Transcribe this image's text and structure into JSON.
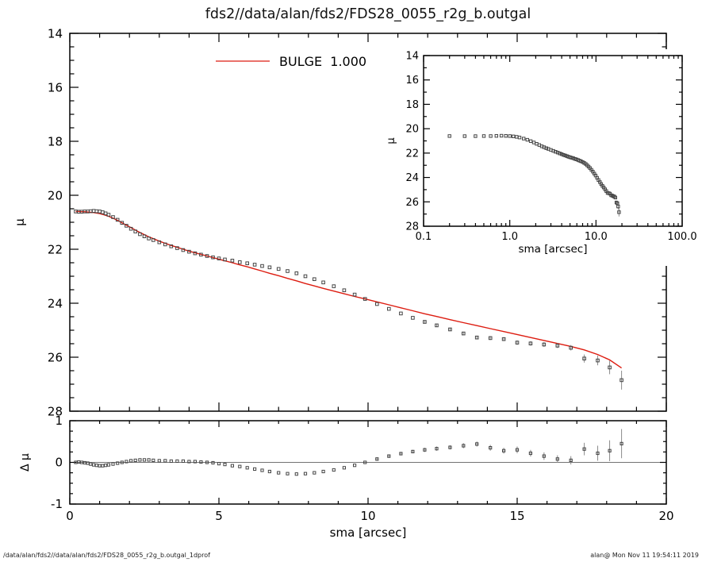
{
  "title": "fds2//data/alan/fds2/FDS28_0055_r2g_b.outgal",
  "footer": {
    "left": "/data/alan/fds2//data/alan/fds2/FDS28_0055_r2g_b.outgal_1dprof",
    "right": "alan@  Mon Nov 11 19:54:11 2019"
  },
  "colors": {
    "model_line": "#dd1c10",
    "data_marker": "#454545",
    "error_bar": "#8a8a8a",
    "axis": "#000000",
    "background": "#ffffff"
  },
  "chart_data": {
    "shared_series": {
      "sma_arcsec": [
        0.2,
        0.3,
        0.4,
        0.5,
        0.6,
        0.7,
        0.8,
        0.9,
        1.0,
        1.1,
        1.2,
        1.3,
        1.45,
        1.6,
        1.75,
        1.9,
        2.05,
        2.2,
        2.35,
        2.5,
        2.65,
        2.8,
        3.0,
        3.2,
        3.4,
        3.6,
        3.8,
        4.0,
        4.2,
        4.4,
        4.6,
        4.8,
        5.0,
        5.2,
        5.45,
        5.7,
        5.95,
        6.2,
        6.45,
        6.7,
        7.0,
        7.3,
        7.6,
        7.9,
        8.2,
        8.5,
        8.85,
        9.2,
        9.55,
        9.9,
        10.3,
        10.7,
        11.1,
        11.5,
        11.9,
        12.3,
        12.75,
        13.2,
        13.65,
        14.1,
        14.55,
        15.0,
        15.45,
        15.9,
        16.35,
        16.8,
        17.25,
        17.7,
        18.1,
        18.5
      ],
      "mu_data": [
        20.6,
        20.61,
        20.61,
        20.6,
        20.6,
        20.59,
        20.58,
        20.59,
        20.6,
        20.63,
        20.67,
        20.72,
        20.81,
        20.91,
        21.02,
        21.13,
        21.24,
        21.34,
        21.44,
        21.52,
        21.6,
        21.66,
        21.74,
        21.82,
        21.89,
        21.96,
        22.03,
        22.09,
        22.15,
        22.2,
        22.25,
        22.3,
        22.34,
        22.38,
        22.42,
        22.48,
        22.52,
        22.57,
        22.62,
        22.67,
        22.73,
        22.81,
        22.89,
        23.0,
        23.11,
        23.23,
        23.37,
        23.52,
        23.68,
        23.84,
        24.03,
        24.21,
        24.38,
        24.54,
        24.69,
        24.82,
        24.97,
        25.12,
        25.27,
        25.29,
        25.33,
        25.46,
        25.49,
        25.53,
        25.57,
        25.65,
        26.05,
        26.12,
        26.38,
        26.85
      ],
      "mu_model_bulge": [
        20.6,
        20.6,
        20.61,
        20.61,
        20.62,
        20.63,
        20.64,
        20.66,
        20.68,
        20.71,
        20.74,
        20.78,
        20.85,
        20.93,
        21.02,
        21.11,
        21.2,
        21.29,
        21.38,
        21.46,
        21.54,
        21.61,
        21.7,
        21.78,
        21.86,
        21.93,
        22.0,
        22.07,
        22.13,
        22.19,
        22.25,
        22.31,
        22.37,
        22.43,
        22.5,
        22.58,
        22.65,
        22.73,
        22.81,
        22.89,
        22.98,
        23.08,
        23.17,
        23.27,
        23.36,
        23.45,
        23.55,
        23.65,
        23.75,
        23.84,
        23.95,
        24.06,
        24.17,
        24.28,
        24.39,
        24.49,
        24.61,
        24.72,
        24.83,
        24.94,
        25.05,
        25.16,
        25.27,
        25.38,
        25.49,
        25.6,
        25.73,
        25.9,
        26.1,
        26.4
      ],
      "delta_mu": [
        0.0,
        0.01,
        0.0,
        -0.01,
        -0.02,
        -0.04,
        -0.06,
        -0.07,
        -0.08,
        -0.08,
        -0.07,
        -0.06,
        -0.04,
        -0.02,
        0.0,
        0.02,
        0.04,
        0.05,
        0.06,
        0.06,
        0.06,
        0.05,
        0.04,
        0.04,
        0.03,
        0.03,
        0.03,
        0.02,
        0.02,
        0.01,
        0.0,
        -0.01,
        -0.03,
        -0.05,
        -0.08,
        -0.1,
        -0.13,
        -0.16,
        -0.19,
        -0.22,
        -0.25,
        -0.27,
        -0.28,
        -0.27,
        -0.25,
        -0.22,
        -0.18,
        -0.13,
        -0.07,
        0.0,
        0.08,
        0.15,
        0.21,
        0.26,
        0.3,
        0.33,
        0.36,
        0.4,
        0.44,
        0.35,
        0.28,
        0.3,
        0.22,
        0.15,
        0.08,
        0.05,
        0.32,
        0.22,
        0.28,
        0.45
      ],
      "mu_err": [
        0.01,
        0.01,
        0.01,
        0.01,
        0.01,
        0.01,
        0.01,
        0.01,
        0.01,
        0.01,
        0.01,
        0.01,
        0.01,
        0.01,
        0.01,
        0.01,
        0.01,
        0.01,
        0.01,
        0.01,
        0.01,
        0.01,
        0.01,
        0.01,
        0.01,
        0.01,
        0.01,
        0.01,
        0.01,
        0.01,
        0.01,
        0.01,
        0.02,
        0.02,
        0.02,
        0.02,
        0.02,
        0.02,
        0.02,
        0.02,
        0.02,
        0.02,
        0.02,
        0.02,
        0.02,
        0.02,
        0.03,
        0.03,
        0.03,
        0.03,
        0.04,
        0.04,
        0.04,
        0.04,
        0.05,
        0.05,
        0.05,
        0.06,
        0.06,
        0.07,
        0.07,
        0.08,
        0.08,
        0.09,
        0.09,
        0.1,
        0.15,
        0.18,
        0.25,
        0.35
      ]
    },
    "main": {
      "type": "scatter",
      "model_overlay": "line",
      "xlim": [
        0,
        20
      ],
      "ylim_top_bottom": [
        14,
        28
      ],
      "xticks": [
        0,
        5,
        10,
        15,
        20
      ],
      "yticks": [
        14,
        16,
        18,
        20,
        22,
        24,
        26,
        28
      ],
      "ylabel": "μ",
      "legend": {
        "label": "BULGE",
        "value": "1.000"
      }
    },
    "inset": {
      "type": "scatter",
      "xscale": "log",
      "xlim": [
        0.1,
        100
      ],
      "ylim_top_bottom": [
        14,
        28
      ],
      "xtick_labels": [
        "0.1",
        "1.0",
        "10.0",
        "100.0"
      ],
      "yticks": [
        14,
        16,
        18,
        20,
        22,
        24,
        26,
        28
      ],
      "xlabel": "sma [arcsec]",
      "ylabel": "μ"
    },
    "residual": {
      "type": "scatter",
      "xlim": [
        0,
        20
      ],
      "ylim_top_bottom": [
        1,
        -1
      ],
      "xticks": [
        0,
        5,
        10,
        15,
        20
      ],
      "yticks": [
        -1,
        0,
        1
      ],
      "xlabel": "sma [arcsec]",
      "ylabel": "Δ μ"
    }
  }
}
